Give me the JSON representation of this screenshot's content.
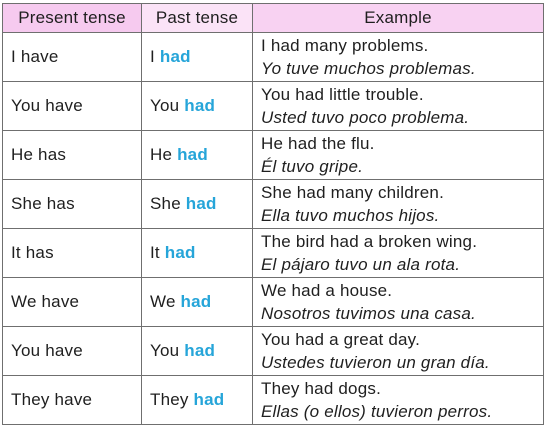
{
  "headers": {
    "present": "Present tense",
    "past": "Past tense",
    "example": "Example"
  },
  "rows": [
    {
      "present": "I have",
      "pronoun": "I",
      "verb": "had",
      "example_en": "I had many problems.",
      "example_es": "Yo tuve muchos problemas."
    },
    {
      "present": "You have",
      "pronoun": "You",
      "verb": "had",
      "example_en": "You had little trouble.",
      "example_es": "Usted tuvo poco problema."
    },
    {
      "present": "He has",
      "pronoun": "He",
      "verb": "had",
      "example_en": "He had the flu.",
      "example_es": "Él tuvo gripe."
    },
    {
      "present": "She has",
      "pronoun": "She",
      "verb": "had",
      "example_en": "She had many children.",
      "example_es": "Ella tuvo muchos hijos."
    },
    {
      "present": "It has",
      "pronoun": "It",
      "verb": "had",
      "example_en": "The bird had a broken wing.",
      "example_es": "El pájaro tuvo un ala rota."
    },
    {
      "present": "We have",
      "pronoun": "We",
      "verb": "had",
      "example_en": "We had a house.",
      "example_es": "Nosotros tuvimos una casa."
    },
    {
      "present": "You have",
      "pronoun": "You",
      "verb": "had",
      "example_en": "You had a great day.",
      "example_es": "Ustedes tuvieron un gran día."
    },
    {
      "present": "They have",
      "pronoun": "They",
      "verb": "had",
      "example_en": "They had dogs.",
      "example_es": "Ellas (o ellos) tuvieron perros."
    }
  ],
  "colors": {
    "header_present": "#f6caef",
    "header_past": "#fbe3f7",
    "header_example": "#f8d2f2",
    "highlight_verb": "#26a5d9"
  }
}
